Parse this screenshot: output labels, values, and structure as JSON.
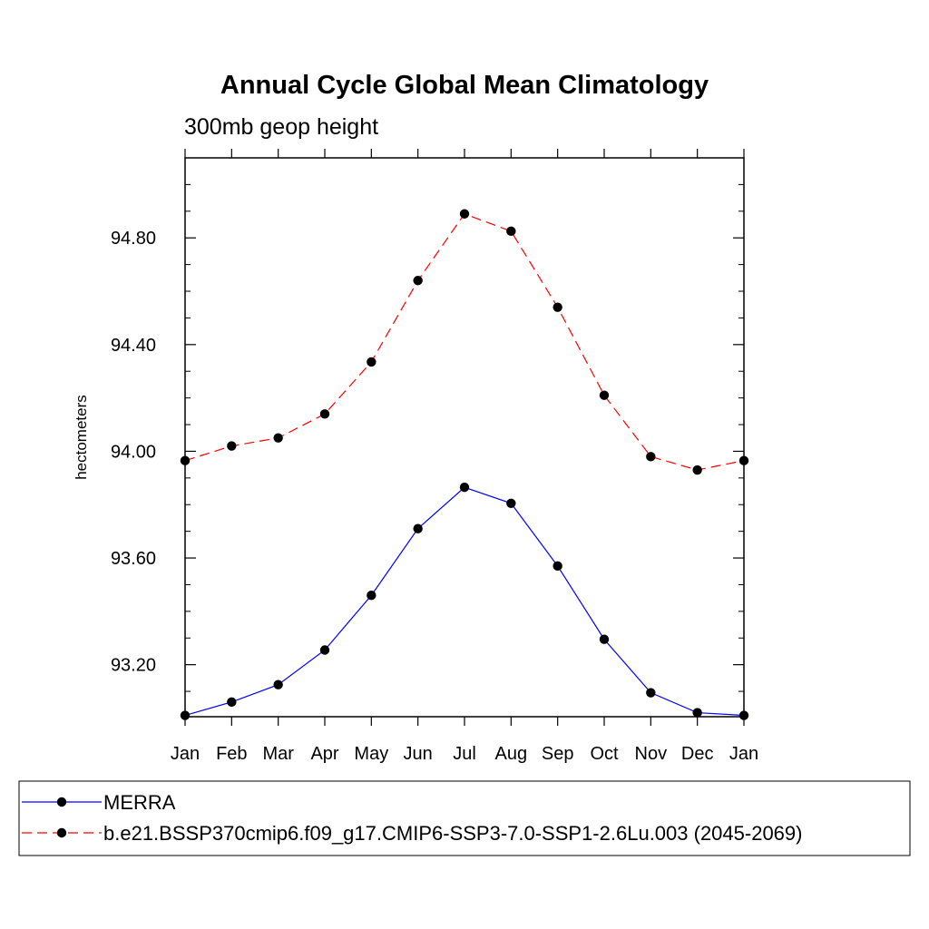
{
  "chart_data": {
    "type": "line",
    "title": "Annual Cycle Global Mean Climatology",
    "subtitle": "300mb geop height",
    "xlabel": "",
    "ylabel": "hectometers",
    "categories": [
      "Jan",
      "Feb",
      "Mar",
      "Apr",
      "May",
      "Jun",
      "Jul",
      "Aug",
      "Sep",
      "Oct",
      "Nov",
      "Dec",
      "Jan"
    ],
    "ylim": [
      93.005,
      95.1
    ],
    "yticks": [
      93.2,
      93.6,
      94.0,
      94.4,
      94.8
    ],
    "ytick_labels": [
      "93.20",
      "93.60",
      "94.00",
      "94.40",
      "94.80"
    ],
    "grid": false,
    "legend_position": "bottom",
    "series": [
      {
        "name": "MERRA",
        "color": "#0000ff",
        "line_style": "solid",
        "marker": "filled-circle",
        "values": [
          93.01,
          93.06,
          93.125,
          93.255,
          93.46,
          93.71,
          93.865,
          93.805,
          93.57,
          93.295,
          93.095,
          93.02,
          93.01
        ]
      },
      {
        "name": "b.e21.BSSP370cmip6.f09_g17.CMIP6-SSP3-7.0-SSP1-2.6Lu.003 (2045-2069)",
        "color": "#ff0000",
        "line_style": "dashed",
        "marker": "filled-circle",
        "values": [
          93.965,
          94.02,
          94.05,
          94.14,
          94.335,
          94.64,
          94.89,
          94.825,
          94.54,
          94.21,
          93.98,
          93.93,
          93.965
        ]
      }
    ]
  }
}
